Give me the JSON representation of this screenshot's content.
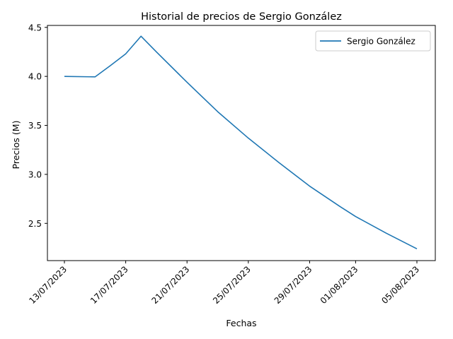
{
  "chart_data": {
    "type": "line",
    "title": "Historial de precios de Sergio González",
    "xlabel": "Fechas",
    "ylabel": "Precios (M)",
    "x_ticks": [
      "13/07/2023",
      "17/07/2023",
      "21/07/2023",
      "25/07/2023",
      "29/07/2023",
      "01/08/2023",
      "05/08/2023"
    ],
    "y_ticks": [
      "2.5",
      "3.0",
      "3.5",
      "4.0",
      "4.5"
    ],
    "ylim": [
      2.12,
      4.52
    ],
    "grid": false,
    "legend_position": "top-right",
    "series": [
      {
        "name": "Sergio González",
        "color": "#1f77b4",
        "points": [
          {
            "x": "13/07/2023",
            "y": 4.0
          },
          {
            "x": "15/07/2023",
            "y": 3.995
          },
          {
            "x": "16/07/2023",
            "y": 4.11
          },
          {
            "x": "17/07/2023",
            "y": 4.23
          },
          {
            "x": "18/07/2023",
            "y": 4.41
          },
          {
            "x": "19/07/2023",
            "y": 4.25
          },
          {
            "x": "21/07/2023",
            "y": 3.94
          },
          {
            "x": "23/07/2023",
            "y": 3.64
          },
          {
            "x": "25/07/2023",
            "y": 3.37
          },
          {
            "x": "27/07/2023",
            "y": 3.12
          },
          {
            "x": "29/07/2023",
            "y": 2.88
          },
          {
            "x": "31/07/2023",
            "y": 2.67
          },
          {
            "x": "01/08/2023",
            "y": 2.57
          },
          {
            "x": "03/08/2023",
            "y": 2.4
          },
          {
            "x": "05/08/2023",
            "y": 2.24
          }
        ]
      }
    ]
  }
}
